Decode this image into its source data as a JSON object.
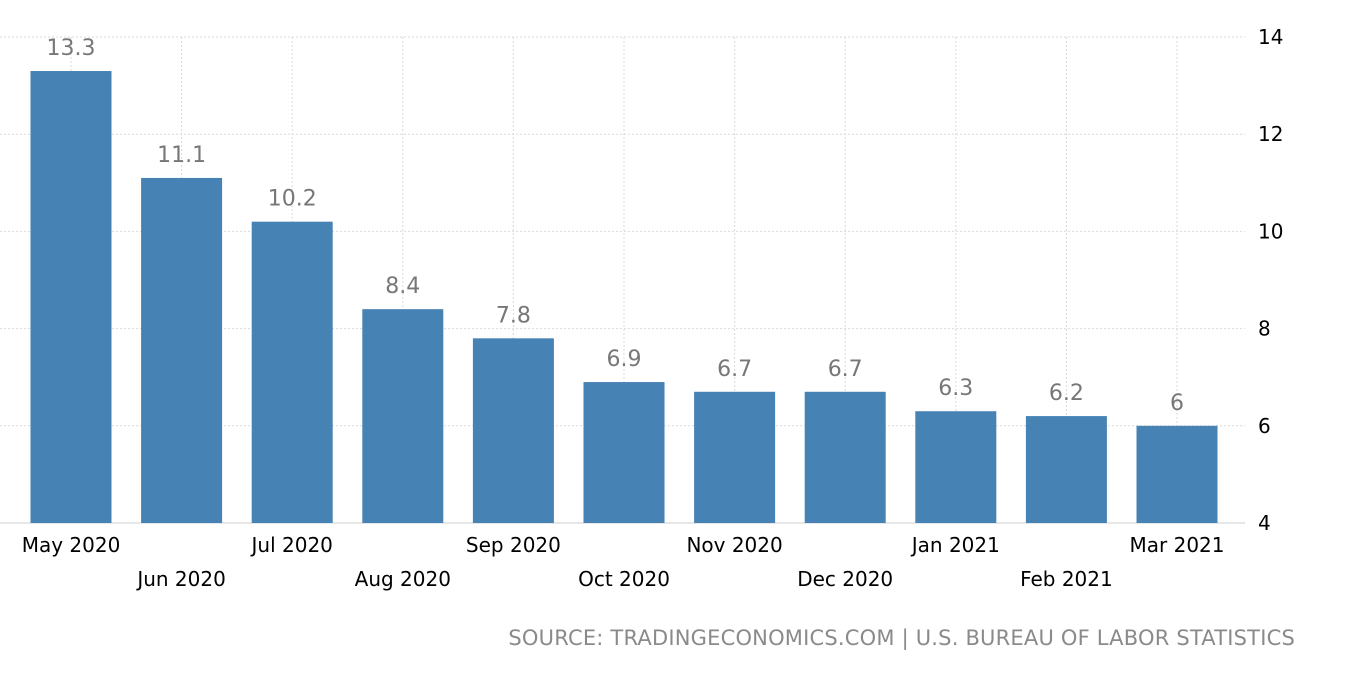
{
  "chart_data": {
    "type": "bar",
    "categories": [
      "May 2020",
      "Jun 2020",
      "Jul 2020",
      "Aug 2020",
      "Sep 2020",
      "Oct 2020",
      "Nov 2020",
      "Dec 2020",
      "Jan 2021",
      "Feb 2021",
      "Mar 2021"
    ],
    "values": [
      13.3,
      11.1,
      10.2,
      8.4,
      7.8,
      6.9,
      6.7,
      6.7,
      6.3,
      6.2,
      6
    ],
    "value_labels": [
      "13.3",
      "11.1",
      "10.2",
      "8.4",
      "7.8",
      "6.9",
      "6.7",
      "6.7",
      "6.3",
      "6.2",
      "6"
    ],
    "ylim": [
      4,
      14
    ],
    "yticks": [
      "4",
      "6",
      "8",
      "10",
      "12",
      "14"
    ],
    "y_axis_position": "right",
    "grid": true,
    "bar_color": "#4682b4",
    "title": "",
    "xlabel": "",
    "ylabel": ""
  },
  "source": "SOURCE: TRADINGECONOMICS.COM | U.S. BUREAU OF LABOR STATISTICS"
}
